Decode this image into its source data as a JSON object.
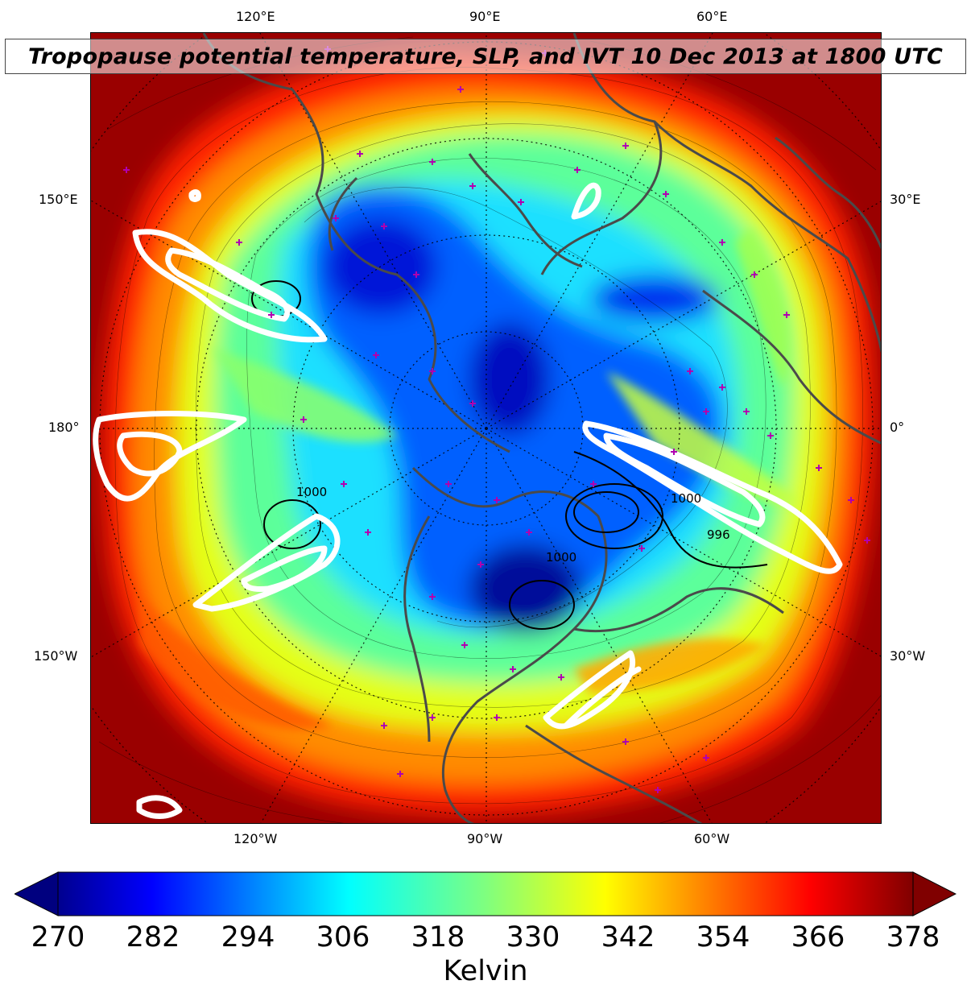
{
  "title": "Tropopause potential temperature, SLP, and IVT 10 Dec 2013 at 1800 UTC",
  "longitude_labels": {
    "top": [
      "120°E",
      "90°E",
      "60°E"
    ],
    "bottom": [
      "120°W",
      "90°W",
      "60°W"
    ],
    "left": [
      "150°E",
      "180°",
      "150°W"
    ],
    "right": [
      "30°E",
      "0°",
      "30°W"
    ]
  },
  "colorbar": {
    "ticks": [
      "270",
      "282",
      "294",
      "306",
      "318",
      "330",
      "342",
      "354",
      "366",
      "378"
    ],
    "units": "Kelvin",
    "range": [
      270,
      378
    ],
    "colormap": "jet",
    "extend": "both"
  },
  "slp_contour_labels": [
    "1000",
    "996",
    "1000",
    "1000"
  ],
  "colors": {
    "coldest": "#00007f",
    "cold": "#0050ff",
    "mid": "#39ffc4",
    "warm": "#f0ff0f",
    "hot": "#ff2a00",
    "hottest": "#800000",
    "ivt_contours": "#ffffff",
    "coastlines": "#4a4a4a",
    "station_markers": "#b000b0"
  }
}
